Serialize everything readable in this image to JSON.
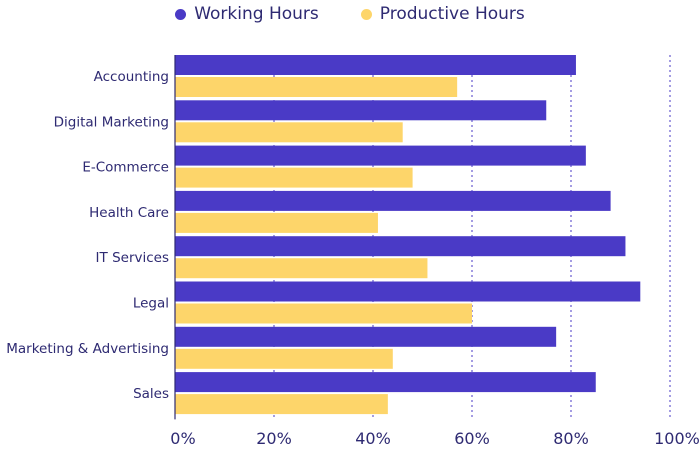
{
  "chart_data": {
    "type": "bar",
    "orientation": "horizontal",
    "categories": [
      "Accounting",
      "Digital Marketing",
      "E-Commerce",
      "Health Care",
      "IT Services",
      "Legal",
      "Marketing & Advertising",
      "Sales"
    ],
    "series": [
      {
        "name": "Working Hours",
        "color": "#4a3ac6",
        "values": [
          81,
          75,
          83,
          88,
          91,
          94,
          77,
          85
        ]
      },
      {
        "name": "Productive Hours",
        "color": "#fdd56a",
        "values": [
          57,
          46,
          48,
          41,
          51,
          60,
          44,
          43
        ]
      }
    ],
    "xlim": [
      0,
      100
    ],
    "x_ticks": [
      "0%",
      "20%",
      "40%",
      "60%",
      "80%",
      "100%"
    ],
    "x_tick_values": [
      0,
      20,
      40,
      60,
      80,
      100
    ],
    "value_suffix": "%",
    "grid": "vertical dotted",
    "legend_position": "top-center",
    "title": "",
    "xlabel": "",
    "ylabel": ""
  }
}
